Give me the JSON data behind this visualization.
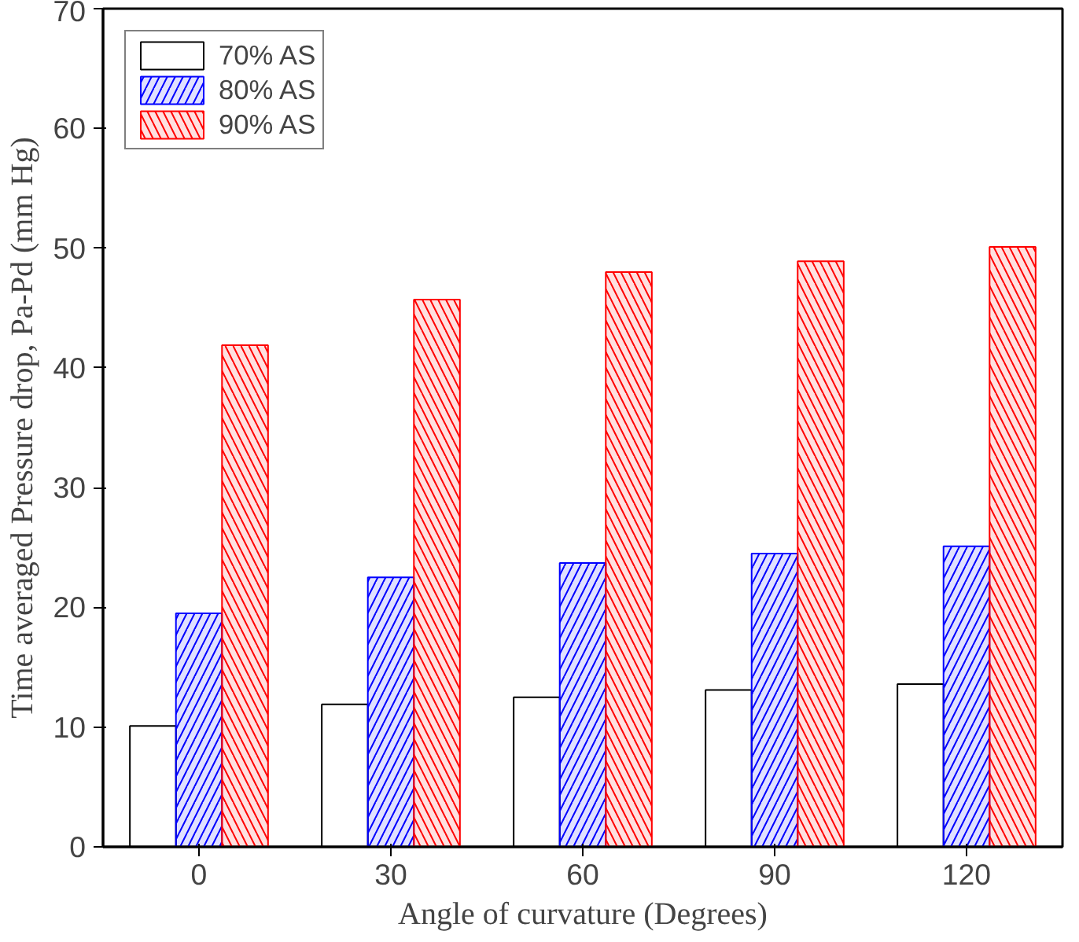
{
  "chart_data": {
    "type": "bar",
    "xlabel": "Angle of curvature (Degrees)",
    "ylabel": "Time averaged Pressure drop, Pa-Pd (mm Hg)",
    "categories": [
      "0",
      "30",
      "60",
      "90",
      "120"
    ],
    "series": [
      {
        "name": "70% AS",
        "color": "#000000",
        "values": [
          10.1,
          11.9,
          12.5,
          13.1,
          13.6
        ]
      },
      {
        "name": "80% AS",
        "color": "#0000ff",
        "values": [
          19.5,
          22.5,
          23.7,
          24.5,
          25.1
        ]
      },
      {
        "name": "90% AS",
        "color": "#ff0000",
        "values": [
          41.9,
          45.7,
          48.0,
          48.9,
          50.1
        ]
      }
    ],
    "ylim": [
      0,
      70
    ],
    "yticks": [
      0,
      10,
      20,
      30,
      40,
      50,
      60,
      70
    ],
    "grid": false,
    "legend": "top left"
  }
}
